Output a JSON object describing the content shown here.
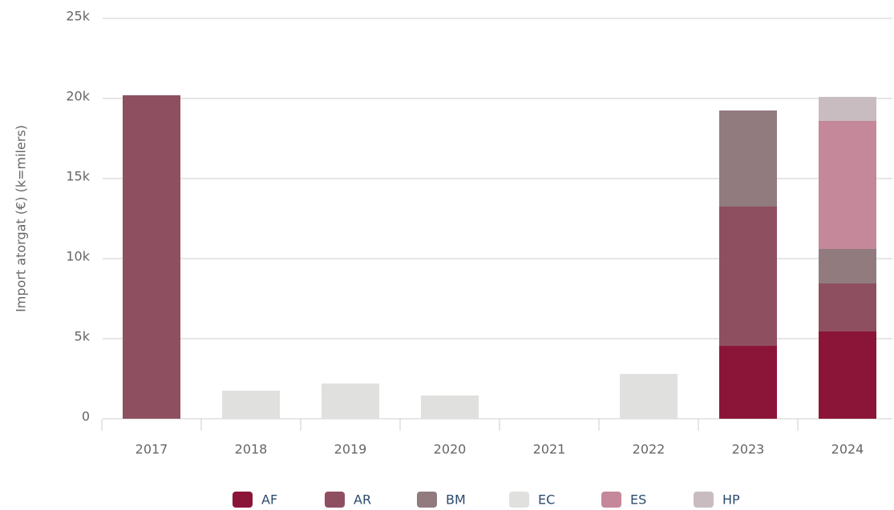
{
  "chart_data": {
    "type": "stacked_bar",
    "y_label": "Import atorgat (€) (k=milers)",
    "categories": [
      "2017",
      "2018",
      "2019",
      "2020",
      "2021",
      "2022",
      "2023",
      "2024"
    ],
    "series": [
      {
        "name": "AF",
        "color": "#8b1538",
        "values": [
          null,
          null,
          null,
          null,
          null,
          null,
          4550,
          5450
        ]
      },
      {
        "name": "AR",
        "color": "#8e5061",
        "values": [
          20200,
          null,
          null,
          null,
          null,
          null,
          8700,
          3000
        ]
      },
      {
        "name": "BM",
        "color": "#917b7f",
        "values": [
          null,
          null,
          null,
          null,
          null,
          null,
          6000,
          2150
        ]
      },
      {
        "name": "EC",
        "color": "#e0e0de",
        "values": [
          null,
          1750,
          2200,
          1450,
          null,
          2800,
          null,
          null
        ]
      },
      {
        "name": "ES",
        "color": "#c4889a",
        "values": [
          null,
          null,
          null,
          null,
          null,
          null,
          null,
          8000
        ]
      },
      {
        "name": "HP",
        "color": "#c9bcc0",
        "values": [
          null,
          null,
          null,
          null,
          null,
          null,
          null,
          1500
        ]
      }
    ],
    "ylim": [
      0,
      25000
    ],
    "yticks": [
      0,
      {
        "value": 5000,
        "label": "5k"
      },
      {
        "value": 10000,
        "label": "10k"
      },
      {
        "value": 15000,
        "label": "15k"
      },
      {
        "value": 20000,
        "label": "20k"
      },
      {
        "value": 25000,
        "label": "25k"
      }
    ],
    "grid": true,
    "legend": "bottom"
  }
}
